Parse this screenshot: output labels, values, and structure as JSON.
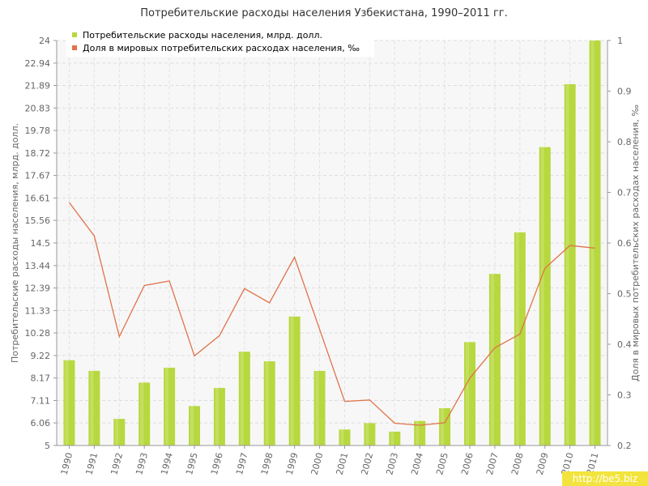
{
  "chart_data": {
    "type": "bar",
    "title": "Потребительские расходы населения Узбекистана, 1990–2011 гг.",
    "xlabel": "",
    "ylabel": "Потребительские расходы населения, млрд. долл.",
    "y2label": "Доля в мировых потребительских расходах населения, ‰",
    "ylim": [
      5,
      24
    ],
    "y2lim": [
      0.2,
      1
    ],
    "yticks": [
      "5",
      "6.06",
      "7.11",
      "8.17",
      "9.22",
      "10.28",
      "11.33",
      "12.39",
      "13.44",
      "14.5",
      "15.56",
      "16.61",
      "17.67",
      "18.72",
      "19.78",
      "20.83",
      "21.89",
      "22.94",
      "24"
    ],
    "y2ticks": [
      "0.2",
      "0.3",
      "0.4",
      "0.5",
      "0.6",
      "0.7",
      "0.8",
      "0.9",
      "1"
    ],
    "grid": true,
    "legend_position": "top-left",
    "categories": [
      "1990",
      "1991",
      "1992",
      "1993",
      "1994",
      "1995",
      "1996",
      "1997",
      "1998",
      "1999",
      "2000",
      "2001",
      "2002",
      "2003",
      "2004",
      "2005",
      "2006",
      "2007",
      "2008",
      "2009",
      "2010",
      "2011"
    ],
    "series": [
      {
        "name": "Потребительские расходы населения, млрд. долл.",
        "type": "bar",
        "axis": "left",
        "color": "#b7d83e",
        "values": [
          9.0,
          8.5,
          6.25,
          7.95,
          8.65,
          6.85,
          7.7,
          9.4,
          8.95,
          11.05,
          8.5,
          5.75,
          6.05,
          5.65,
          6.15,
          6.75,
          9.85,
          13.05,
          15.0,
          19.0,
          21.95,
          24.0
        ]
      },
      {
        "name": "Доля в мировых потребительских расходах населения, ‰",
        "type": "line",
        "axis": "right",
        "color": "#e0734a",
        "values": [
          0.68,
          0.614,
          0.415,
          0.516,
          0.525,
          0.377,
          0.417,
          0.51,
          0.482,
          0.572,
          0.43,
          0.287,
          0.29,
          0.244,
          0.24,
          0.245,
          0.333,
          0.393,
          0.42,
          0.55,
          0.595,
          0.59
        ]
      }
    ]
  },
  "watermark": "http://be5.biz"
}
